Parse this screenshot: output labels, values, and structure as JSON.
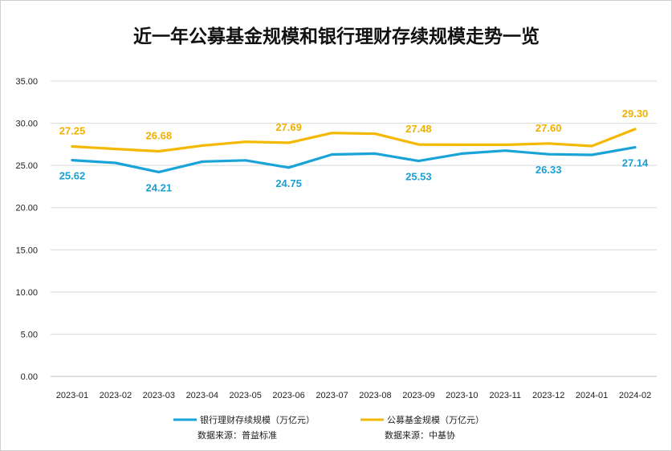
{
  "chart_data": {
    "type": "line",
    "title": "近一年公募基金规模和银行理财存续规模走势一览",
    "xlabel": "",
    "ylabel": "",
    "ylim": [
      0,
      35
    ],
    "yticks": [
      "0.00",
      "5.00",
      "10.00",
      "15.00",
      "20.00",
      "25.00",
      "30.00",
      "35.00"
    ],
    "grid": true,
    "legend_position": "bottom",
    "categories": [
      "2023-01",
      "2023-02",
      "2023-03",
      "2023-04",
      "2023-05",
      "2023-06",
      "2023-07",
      "2023-08",
      "2023-09",
      "2023-10",
      "2023-11",
      "2023-12",
      "2024-01",
      "2024-02"
    ],
    "series": [
      {
        "name": "银行理财存续规模（万亿元）",
        "source": "数据来源：普益标准",
        "color": "#1aa3d9",
        "label_color": "#1a9fd3",
        "values": [
          25.62,
          25.3,
          24.21,
          25.45,
          25.6,
          24.75,
          26.3,
          26.4,
          25.53,
          26.4,
          26.75,
          26.33,
          26.25,
          27.14
        ],
        "labels": {
          "0": "25.62",
          "2": "24.21",
          "5": "24.75",
          "8": "25.53",
          "11": "26.33",
          "13": "27.14"
        }
      },
      {
        "name": "公募基金规模（万亿元）",
        "source": "数据来源：中基协",
        "color": "#f5b800",
        "label_color": "#f0b000",
        "values": [
          27.25,
          26.95,
          26.68,
          27.35,
          27.8,
          27.69,
          28.85,
          28.75,
          27.48,
          27.45,
          27.45,
          27.6,
          27.3,
          29.3
        ],
        "labels": {
          "0": "27.25",
          "2": "26.68",
          "5": "27.69",
          "8": "27.48",
          "11": "27.60",
          "13": "29.30"
        }
      }
    ]
  }
}
